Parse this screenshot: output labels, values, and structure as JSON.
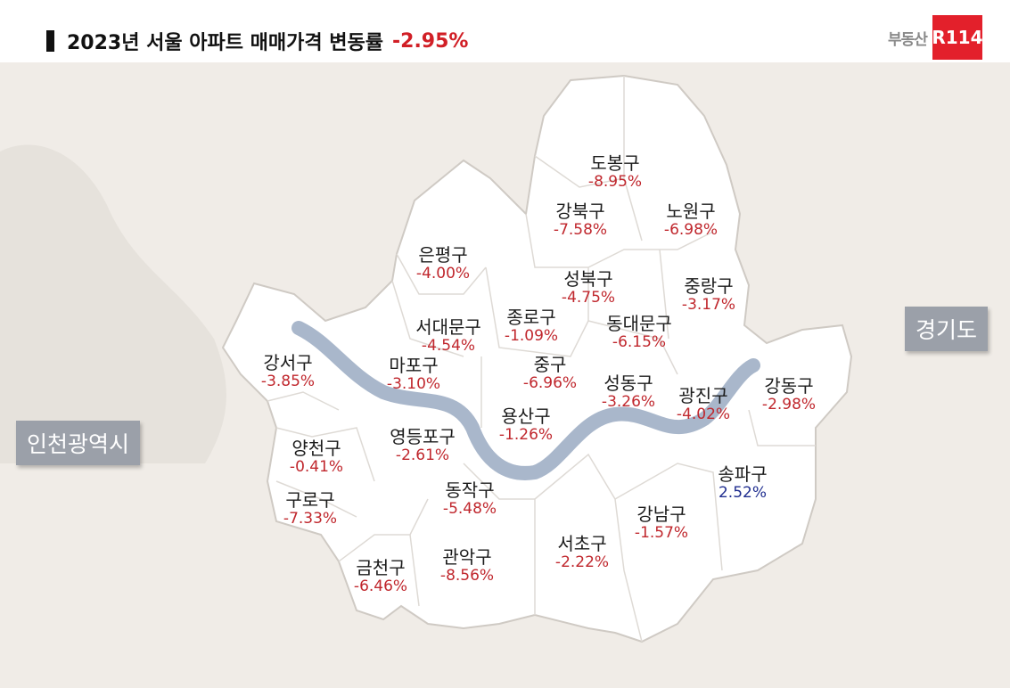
{
  "title": {
    "text": "2023년 서울 아파트 매매가격 변동률",
    "rate": "-2.95%"
  },
  "brand": {
    "text": "부동산",
    "logo": "R114",
    "color": "#e3202b"
  },
  "colors": {
    "background": "#f0ece7",
    "seoul": "#ffffff",
    "border": "#cfcac4",
    "river": "#a9b7cb",
    "negative": "#c0272d",
    "positive": "#1f2d8f",
    "label_box": "#9ba0a9"
  },
  "regions": {
    "incheon": "인천광역시",
    "gyeonggi": "경기도"
  },
  "districts": [
    {
      "name": "도봉구",
      "rate": "-8.95%",
      "value": -8.95
    },
    {
      "name": "강북구",
      "rate": "-7.58%",
      "value": -7.58
    },
    {
      "name": "노원구",
      "rate": "-6.98%",
      "value": -6.98
    },
    {
      "name": "은평구",
      "rate": "-4.00%",
      "value": -4.0
    },
    {
      "name": "성북구",
      "rate": "-4.75%",
      "value": -4.75
    },
    {
      "name": "중랑구",
      "rate": "-3.17%",
      "value": -3.17
    },
    {
      "name": "서대문구",
      "rate": "-4.54%",
      "value": -4.54
    },
    {
      "name": "종로구",
      "rate": "-1.09%",
      "value": -1.09
    },
    {
      "name": "동대문구",
      "rate": "-6.15%",
      "value": -6.15
    },
    {
      "name": "강서구",
      "rate": "-3.85%",
      "value": -3.85
    },
    {
      "name": "마포구",
      "rate": "-3.10%",
      "value": -3.1
    },
    {
      "name": "중구",
      "rate": "-6.96%",
      "value": -6.96
    },
    {
      "name": "성동구",
      "rate": "-3.26%",
      "value": -3.26
    },
    {
      "name": "광진구",
      "rate": "-4.02%",
      "value": -4.02
    },
    {
      "name": "강동구",
      "rate": "-2.98%",
      "value": -2.98
    },
    {
      "name": "양천구",
      "rate": "-0.41%",
      "value": -0.41
    },
    {
      "name": "영등포구",
      "rate": "-2.61%",
      "value": -2.61
    },
    {
      "name": "용산구",
      "rate": "-1.26%",
      "value": -1.26
    },
    {
      "name": "송파구",
      "rate": "2.52%",
      "value": 2.52
    },
    {
      "name": "구로구",
      "rate": "-7.33%",
      "value": -7.33
    },
    {
      "name": "동작구",
      "rate": "-5.48%",
      "value": -5.48
    },
    {
      "name": "강남구",
      "rate": "-1.57%",
      "value": -1.57
    },
    {
      "name": "서초구",
      "rate": "-2.22%",
      "value": -2.22
    },
    {
      "name": "금천구",
      "rate": "-6.46%",
      "value": -6.46
    },
    {
      "name": "관악구",
      "rate": "-8.56%",
      "value": -8.56
    }
  ]
}
